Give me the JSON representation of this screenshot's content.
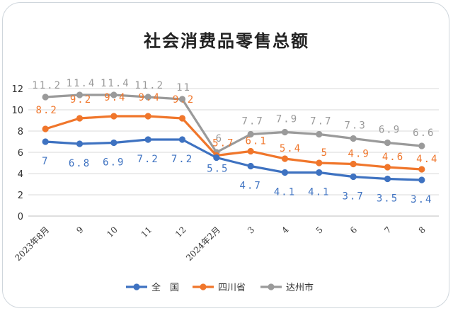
{
  "chart_data": {
    "type": "line",
    "title": "社会消费品零售总额",
    "xlabel": "",
    "ylabel": "",
    "categories": [
      "2023年8月",
      "9",
      "10",
      "11",
      "12",
      "2024年2月",
      "3",
      "4",
      "5",
      "6",
      "7",
      "8"
    ],
    "ylim": [
      0,
      12
    ],
    "yticks": [
      "0",
      "2",
      "4",
      "6",
      "8",
      "10",
      "12"
    ],
    "grid": true,
    "legend_position": "bottom",
    "series": [
      {
        "name": "全　国",
        "color": "#3e72c1",
        "values": [
          7,
          6.8,
          6.9,
          7.2,
          7.2,
          5.5,
          4.7,
          4.1,
          4.1,
          3.7,
          3.5,
          3.4
        ],
        "labels": [
          "7",
          "6.8",
          "6.9",
          "7.2",
          "7.2",
          "5.5",
          "4.7",
          "4.1",
          "4.1",
          "3.7",
          "3.5",
          "3.4"
        ]
      },
      {
        "name": "四川省",
        "color": "#f0762b",
        "values": [
          8.2,
          9.2,
          9.4,
          9.4,
          9.2,
          5.7,
          6.1,
          5.4,
          5,
          4.9,
          4.6,
          4.4
        ],
        "labels": [
          "8.2",
          "9.2",
          "9.4",
          "9.4",
          "9.2",
          "5.7",
          "6.1",
          "5.4",
          "5",
          "4.9",
          "4.6",
          "4.4"
        ]
      },
      {
        "name": "达州市",
        "color": "#9a9a9a",
        "values": [
          11.2,
          11.4,
          11.4,
          11.2,
          11,
          6,
          7.7,
          7.9,
          7.7,
          7.3,
          6.9,
          6.6
        ],
        "labels": [
          "11.2",
          "11.4",
          "11.4",
          "11.2",
          "11",
          "6",
          "7.7",
          "7.9",
          "7.7",
          "7.3",
          "6.9",
          "6.6"
        ]
      }
    ]
  }
}
